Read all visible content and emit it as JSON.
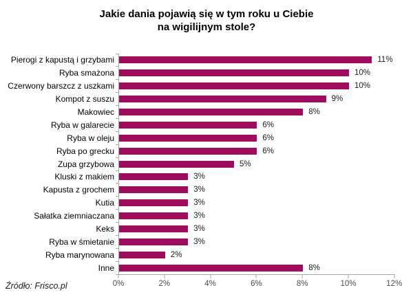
{
  "title": {
    "line1": "Jakie dania pojawią się w tym roku u Ciebie",
    "line2": "na wigilijnym stole?"
  },
  "source": "Źródło: Frisco.pl",
  "chart_data": {
    "type": "bar",
    "orientation": "horizontal",
    "title": "Jakie dania pojawią się w tym roku u Ciebie na wigilijnym stole?",
    "categories": [
      "Pierogi z kapustą i grzybami",
      "Ryba smażona",
      "Czerwony barszcz z uszkami",
      "Kompot z suszu",
      "Makowiec",
      "Ryba w galarecie",
      "Ryba w oleju",
      "Ryba po grecku",
      "Zupa grzybowa",
      "Kluski z makiem",
      "Kapusta z grochem",
      "Kutia",
      "Sałatka ziemniaczana",
      "Keks",
      "Ryba w śmietanie",
      "Ryba marynowana",
      "Inne"
    ],
    "values": [
      11,
      10,
      10,
      9,
      8,
      6,
      6,
      6,
      5,
      3,
      3,
      3,
      3,
      3,
      3,
      2,
      8
    ],
    "value_labels": [
      "11%",
      "10%",
      "10%",
      "9%",
      "8%",
      "6%",
      "6%",
      "6%",
      "5%",
      "3%",
      "3%",
      "3%",
      "3%",
      "3%",
      "3%",
      "2%",
      "8%"
    ],
    "xlabel": "",
    "ylabel": "",
    "xlim": [
      0,
      12
    ],
    "xticks": [
      "0%",
      "2%",
      "4%",
      "6%",
      "8%",
      "10%",
      "12%"
    ],
    "xtick_values": [
      0,
      2,
      4,
      6,
      8,
      10,
      12
    ],
    "grid": false,
    "legend": null,
    "bar_color": "#a10b5e",
    "axis_color": "#a6a6a6"
  }
}
